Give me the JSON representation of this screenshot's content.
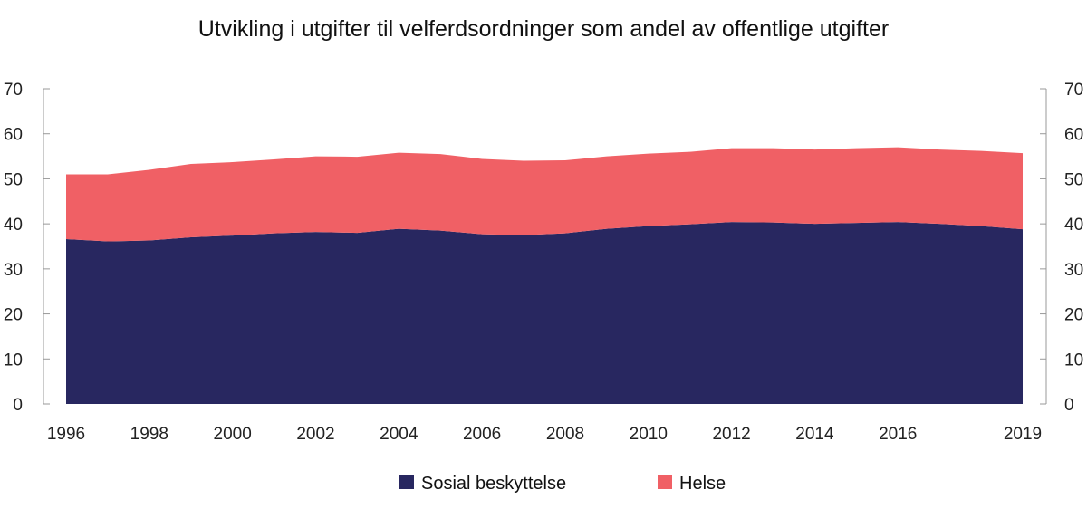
{
  "chart_data": {
    "type": "area",
    "stacked": true,
    "title": "Utvikling i utgifter til velferdsordninger som andel av offentlige utgifter",
    "xlabel": "",
    "ylabel": "",
    "x": [
      1996,
      1997,
      1998,
      1999,
      2000,
      2001,
      2002,
      2003,
      2004,
      2005,
      2006,
      2007,
      2008,
      2009,
      2010,
      2011,
      2012,
      2013,
      2014,
      2015,
      2016,
      2017,
      2018,
      2019
    ],
    "x_tick_labels": [
      "1996",
      "1998",
      "2000",
      "2002",
      "2004",
      "2006",
      "2008",
      "2010",
      "2012",
      "2014",
      "2016",
      "2019"
    ],
    "ylim": [
      0,
      70
    ],
    "y_ticks": [
      0,
      10,
      20,
      30,
      40,
      50,
      60,
      70
    ],
    "y_tick_labels": [
      "0",
      "10",
      "20",
      "30",
      "40",
      "50",
      "60",
      "70"
    ],
    "dual_y_axis": true,
    "grid": false,
    "legend_position": "bottom-center",
    "series": [
      {
        "name": "Sosial beskyttelse",
        "color": "#282760",
        "values": [
          36.6,
          36.1,
          36.3,
          37.0,
          37.4,
          37.9,
          38.2,
          38.0,
          38.9,
          38.5,
          37.7,
          37.5,
          37.9,
          38.9,
          39.5,
          39.9,
          40.4,
          40.3,
          40.0,
          40.2,
          40.4,
          40.0,
          39.5,
          38.8
        ]
      },
      {
        "name": "Helse",
        "color": "#F06065",
        "values": [
          14.4,
          14.9,
          15.7,
          16.3,
          16.3,
          16.4,
          16.8,
          16.9,
          16.9,
          17.0,
          16.7,
          16.5,
          16.2,
          16.1,
          16.1,
          16.1,
          16.4,
          16.5,
          16.5,
          16.6,
          16.6,
          16.5,
          16.7,
          16.9
        ]
      }
    ]
  }
}
